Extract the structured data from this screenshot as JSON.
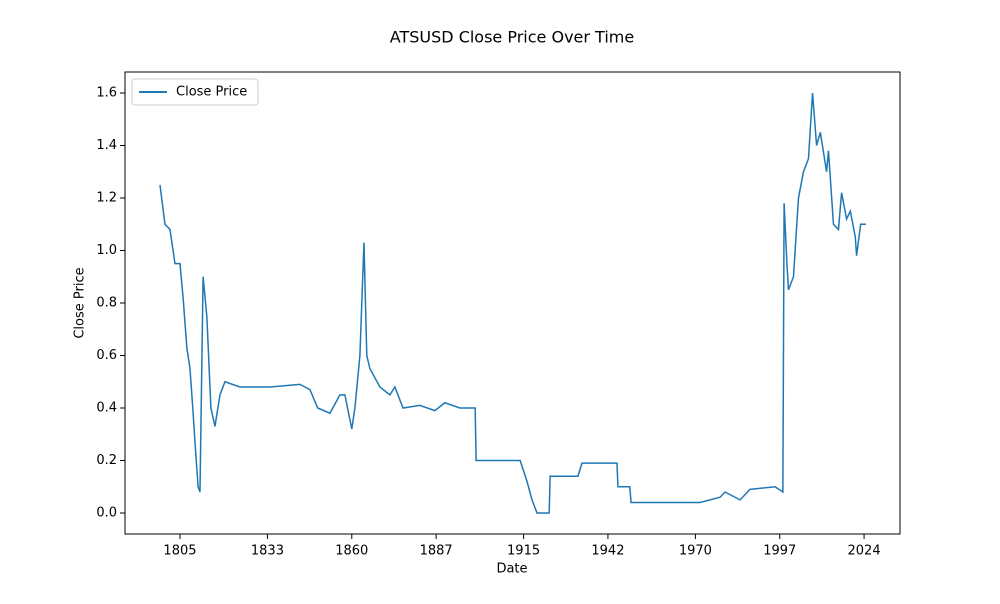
{
  "chart_data": {
    "type": "line",
    "title": "ATSUSD Close Price Over Time",
    "x_label": "Date",
    "y_label": "Close Price",
    "x": [
      1798.6,
      1800.2,
      1801.8,
      1803.4,
      1805.0,
      1806.0,
      1807.2,
      1808.2,
      1809.1,
      1809.8,
      1810.8,
      1811.4,
      1812.4,
      1813.6,
      1814.9,
      1816.2,
      1817.8,
      1819.4,
      1824.2,
      1833.8,
      1843.4,
      1846.6,
      1849.1,
      1853.0,
      1856.2,
      1857.8,
      1860.0,
      1861.0,
      1862.6,
      1863.9,
      1864.8,
      1865.8,
      1869.0,
      1872.2,
      1873.8,
      1876.4,
      1881.8,
      1886.6,
      1889.8,
      1894.6,
      1899.5,
      1899.8,
      1913.9,
      1916.1,
      1917.7,
      1919.3,
      1923.2,
      1923.5,
      1932.4,
      1933.7,
      1944.9,
      1945.2,
      1949.0,
      1949.4,
      1971.5,
      1977.9,
      1979.5,
      1984.3,
      1987.5,
      1995.5,
      1998.0,
      1998.4,
      1999.3,
      1999.8,
      2001.4,
      2003.0,
      2004.6,
      2006.2,
      2007.5,
      2008.8,
      2010.0,
      2012.0,
      2012.6,
      2014.2,
      2015.8,
      2016.8,
      2018.4,
      2019.6,
      2021.2,
      2021.6,
      2022.9,
      2024.6
    ],
    "series": [
      {
        "name": "Close Price",
        "color": "#1f77b4",
        "values": [
          1.25,
          1.1,
          1.08,
          0.95,
          0.95,
          0.82,
          0.63,
          0.55,
          0.4,
          0.27,
          0.1,
          0.08,
          0.9,
          0.75,
          0.4,
          0.33,
          0.45,
          0.5,
          0.48,
          0.48,
          0.49,
          0.47,
          0.4,
          0.38,
          0.45,
          0.45,
          0.32,
          0.4,
          0.6,
          1.03,
          0.6,
          0.55,
          0.48,
          0.45,
          0.48,
          0.4,
          0.41,
          0.39,
          0.42,
          0.4,
          0.4,
          0.2,
          0.2,
          0.12,
          0.05,
          0.0,
          0.0,
          0.14,
          0.14,
          0.19,
          0.19,
          0.1,
          0.1,
          0.04,
          0.04,
          0.06,
          0.08,
          0.05,
          0.09,
          0.1,
          0.08,
          1.18,
          0.95,
          0.85,
          0.9,
          1.2,
          1.3,
          1.35,
          1.6,
          1.4,
          1.45,
          1.3,
          1.38,
          1.1,
          1.08,
          1.22,
          1.12,
          1.15,
          1.05,
          0.98,
          1.1,
          1.1
        ]
      }
    ],
    "xlim": [
      1787.4,
      2035.5
    ],
    "xticks": [
      1805,
      1833,
      1860,
      1887,
      1915,
      1942,
      1970,
      1997,
      2024
    ],
    "ylim": [
      -0.08,
      1.68
    ],
    "yticks": [
      {
        "value": 0,
        "label": "0.0"
      },
      0.2,
      0.4,
      0.6,
      0.8,
      {
        "value": 1,
        "label": "1.0"
      },
      1.2,
      1.4,
      1.6
    ],
    "legend": "upper left"
  }
}
